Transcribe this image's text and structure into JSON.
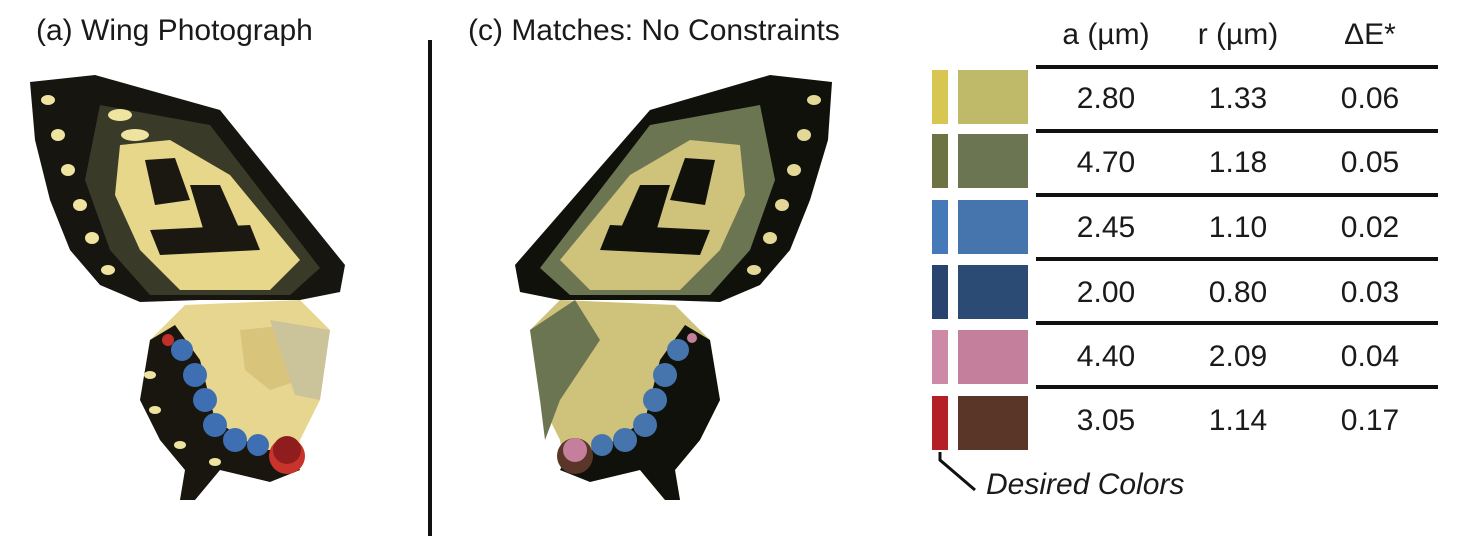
{
  "panel_a": {
    "title": "(a)  Wing Photograph"
  },
  "panel_c": {
    "title": "(c)  Matches: No Constraints"
  },
  "table": {
    "headers": [
      "a (µm)",
      "r (µm)",
      "ΔE*"
    ],
    "rows": [
      {
        "a": "2.80",
        "r": "1.33",
        "dE": "0.06",
        "desired_color": "#d8c653",
        "matched_color": "#bfb96a"
      },
      {
        "a": "4.70",
        "r": "1.18",
        "dE": "0.05",
        "desired_color": "#6e7344",
        "matched_color": "#6b7552"
      },
      {
        "a": "2.45",
        "r": "1.10",
        "dE": "0.02",
        "desired_color": "#4679b8",
        "matched_color": "#4675ae"
      },
      {
        "a": "2.00",
        "r": "0.80",
        "dE": "0.03",
        "desired_color": "#2a4470",
        "matched_color": "#2b4a74"
      },
      {
        "a": "4.40",
        "r": "2.09",
        "dE": "0.04",
        "desired_color": "#cc8aa6",
        "matched_color": "#c47f9c"
      },
      {
        "a": "3.05",
        "r": "1.14",
        "dE": "0.17",
        "desired_color": "#b42025",
        "matched_color": "#5a3628"
      }
    ],
    "desired_label": "Desired Colors"
  }
}
